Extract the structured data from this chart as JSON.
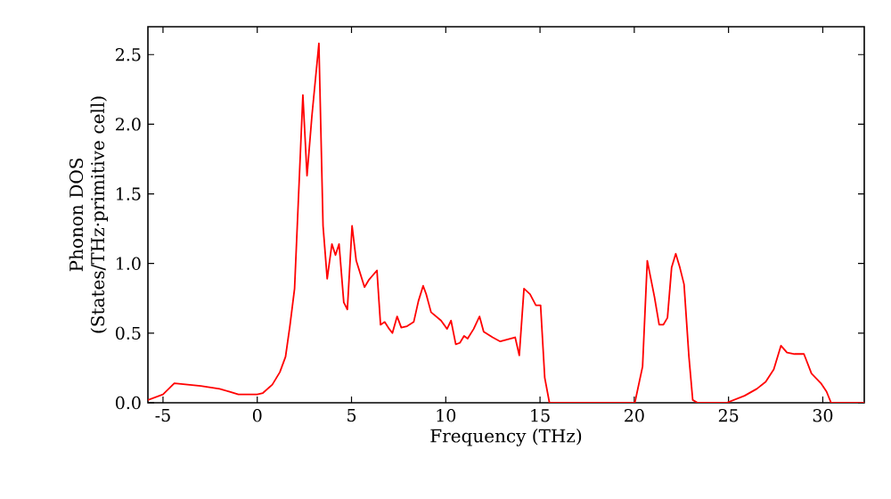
{
  "chart_data": {
    "type": "line",
    "xlabel": "Frequency (THz)",
    "ylabel": "Phonon DOS\n(States/THz·primitive cell)",
    "xlim": [
      -5.8,
      32.2
    ],
    "ylim": [
      0,
      2.7
    ],
    "xticks": [
      -5,
      0,
      5,
      10,
      15,
      20,
      25,
      30
    ],
    "yticks": [
      {
        "value": 0,
        "label": "0.0"
      },
      {
        "value": 0.5,
        "label": "0.5"
      },
      {
        "value": 1,
        "label": "1.0"
      },
      {
        "value": 1.5,
        "label": "1.5"
      },
      {
        "value": 2,
        "label": "2.0"
      },
      {
        "value": 2.5,
        "label": "2.5"
      }
    ],
    "line_style": "solid",
    "marker": "none",
    "series": [
      {
        "color": "#ff0000",
        "x": [
          -5.8,
          -5,
          -4.4,
          -3,
          -2,
          -1.5,
          -1,
          0,
          0.3,
          0.8,
          1.2,
          1.5,
          1.73,
          1.98,
          2.42,
          2.64,
          2.9,
          3.27,
          3.49,
          3.71,
          3.96,
          4.15,
          4.34,
          4.59,
          4.78,
          5.03,
          5.25,
          5.69,
          5.91,
          6.35,
          6.54,
          6.76,
          7.0,
          7.17,
          7.42,
          7.64,
          7.95,
          8.3,
          8.55,
          8.8,
          8.96,
          9.22,
          9.75,
          10.07,
          10.28,
          10.53,
          10.75,
          10.97,
          11.16,
          11.48,
          11.79,
          12.01,
          12.48,
          12.89,
          13.68,
          13.9,
          14.15,
          14.47,
          14.78,
          15.03,
          15.25,
          15.5,
          20.03,
          20.44,
          20.69,
          21.07,
          21.32,
          21.54,
          21.76,
          21.98,
          22.2,
          22.42,
          22.64,
          22.9,
          23.1,
          23.36,
          24.9,
          25.85,
          26.5,
          26.97,
          27.4,
          27.78,
          28.1,
          28.5,
          29.0,
          29.4,
          29.9,
          30.2,
          30.44,
          32.2
        ],
        "values": [
          0.02,
          0.06,
          0.14,
          0.12,
          0.1,
          0.08,
          0.06,
          0.06,
          0.07,
          0.13,
          0.22,
          0.33,
          0.55,
          0.82,
          2.21,
          1.63,
          2.06,
          2.58,
          1.27,
          0.89,
          1.14,
          1.06,
          1.14,
          0.72,
          0.67,
          1.27,
          1.02,
          0.83,
          0.88,
          0.95,
          0.56,
          0.58,
          0.53,
          0.5,
          0.62,
          0.54,
          0.55,
          0.58,
          0.73,
          0.84,
          0.78,
          0.65,
          0.59,
          0.53,
          0.59,
          0.42,
          0.43,
          0.48,
          0.46,
          0.53,
          0.62,
          0.51,
          0.47,
          0.44,
          0.47,
          0.34,
          0.82,
          0.78,
          0.7,
          0.7,
          0.18,
          0,
          0,
          0.26,
          1.02,
          0.76,
          0.56,
          0.56,
          0.61,
          0.97,
          1.07,
          0.97,
          0.85,
          0.33,
          0.02,
          0,
          0,
          0.05,
          0.1,
          0.15,
          0.24,
          0.41,
          0.36,
          0.35,
          0.35,
          0.21,
          0.14,
          0.08,
          0,
          0
        ]
      }
    ]
  }
}
